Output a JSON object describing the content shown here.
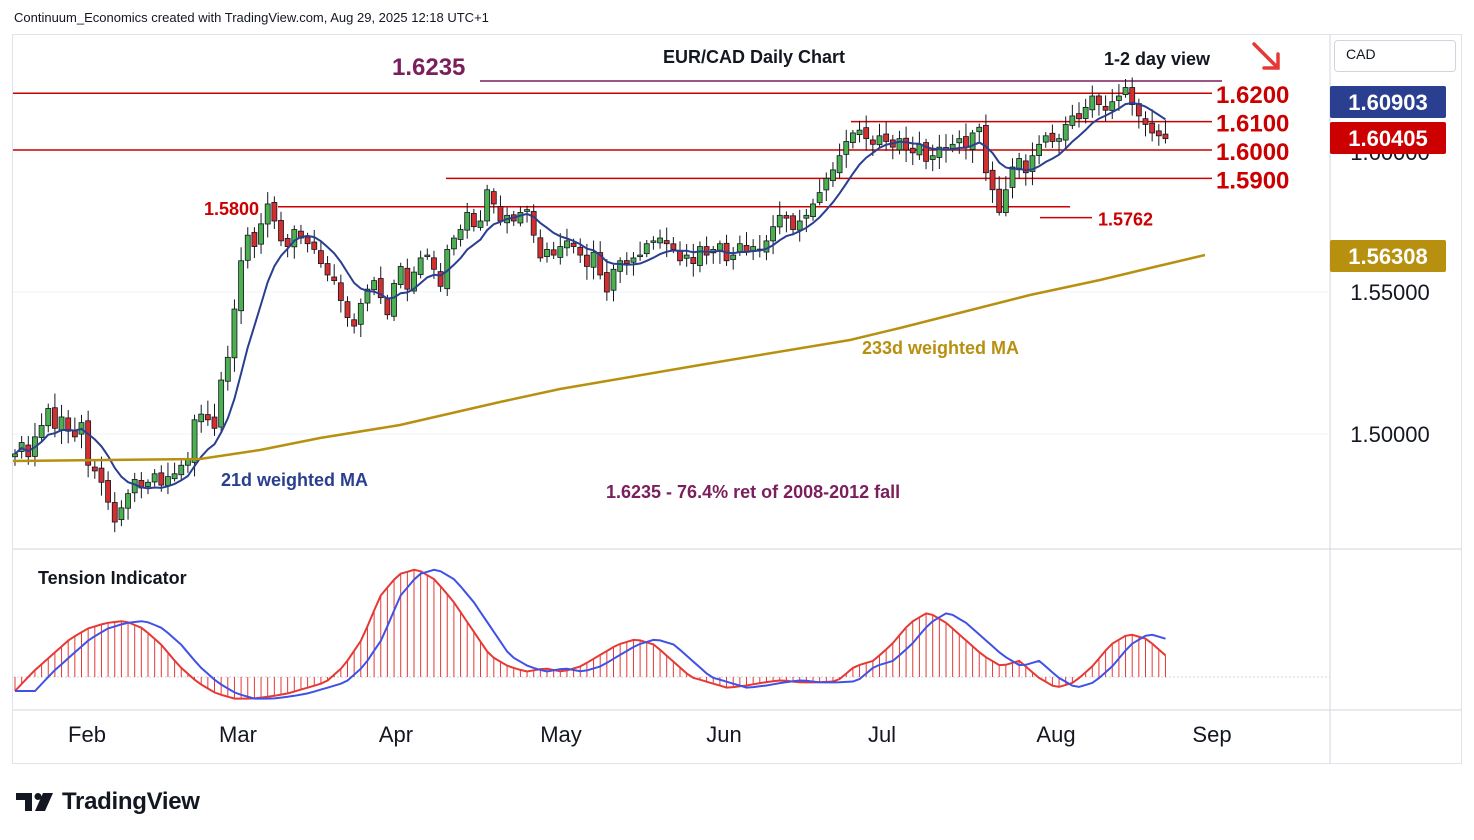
{
  "header": {
    "text": "Continuum_Economics created with TradingView.com, Aug 29, 2025 12:18 UTC+1"
  },
  "brand": {
    "name": "TradingView"
  },
  "price_scale": {
    "currency": "CAD",
    "axis_ticks": [
      "1.55000",
      "1.50000"
    ],
    "badges": [
      {
        "label": "1.60903",
        "value": 1.60903,
        "color": "#2a3f8f"
      },
      {
        "label": "1.60405",
        "value": 1.60405,
        "color": "#cc0000"
      },
      {
        "label": "1.56308",
        "value": 1.56308,
        "color": "#b8900f"
      }
    ],
    "partial_tick": "1.60000"
  },
  "annotations": {
    "title": "EUR/CAD Daily Chart",
    "view": "1-2 day view",
    "view_arrow": "arrow-down-right-icon",
    "fib_level": "1.6235",
    "fib_note": "1.6235 - 76.4% ret of 2008-2012 fall",
    "ma21_label": "21d weighted MA",
    "ma233_label": "233d weighted MA",
    "tension_label": "Tension Indicator"
  },
  "levels": [
    {
      "label": "1.6235",
      "value": 1.6235,
      "color": "#7a1f5c"
    },
    {
      "label": "1.6200",
      "value": 1.62,
      "color": "#cc0000"
    },
    {
      "label": "1.6100",
      "value": 1.61,
      "color": "#cc0000"
    },
    {
      "label": "1.6000",
      "value": 1.6,
      "color": "#cc0000"
    },
    {
      "label": "1.5900",
      "value": 1.59,
      "color": "#cc0000"
    },
    {
      "label": "1.5800",
      "value": 1.58,
      "color": "#cc0000"
    },
    {
      "label": "1.5762",
      "value": 1.5762,
      "color": "#cc0000"
    }
  ],
  "chart_data": {
    "type": "candlestick",
    "title": "EUR/CAD Daily Chart",
    "x_labels": [
      "Feb",
      "Mar",
      "Apr",
      "May",
      "Jun",
      "Jul",
      "Aug",
      "Sep"
    ],
    "ylim": [
      1.46,
      1.635
    ],
    "ohlc_start": [
      1.489,
      1.495,
      1.487,
      1.493
    ],
    "closes": [
      1.493,
      1.497,
      1.492,
      1.499,
      1.503,
      1.509,
      1.502,
      1.506,
      1.501,
      1.499,
      1.504,
      1.489,
      1.487,
      1.483,
      1.476,
      1.469,
      1.474,
      1.479,
      1.484,
      1.481,
      1.483,
      1.486,
      1.482,
      1.485,
      1.486,
      1.489,
      1.491,
      1.505,
      1.507,
      1.505,
      1.502,
      1.519,
      1.527,
      1.544,
      1.561,
      1.57,
      1.566,
      1.574,
      1.581,
      1.575,
      1.568,
      1.566,
      1.572,
      1.569,
      1.567,
      1.565,
      1.56,
      1.556,
      1.554,
      1.547,
      1.541,
      1.538,
      1.546,
      1.551,
      1.554,
      1.548,
      1.542,
      1.553,
      1.559,
      1.551,
      1.557,
      1.562,
      1.563,
      1.558,
      1.552,
      1.565,
      1.569,
      1.572,
      1.578,
      1.573,
      1.575,
      1.586,
      1.581,
      1.575,
      1.577,
      1.575,
      1.578,
      1.579,
      1.57,
      1.562,
      1.565,
      1.563,
      1.566,
      1.568,
      1.566,
      1.563,
      1.559,
      1.564,
      1.556,
      1.55,
      1.558,
      1.561,
      1.56,
      1.562,
      1.563,
      1.567,
      1.568,
      1.569,
      1.567,
      1.565,
      1.561,
      1.563,
      1.56,
      1.566,
      1.563,
      1.565,
      1.567,
      1.561,
      1.563,
      1.567,
      1.564,
      1.566,
      1.565,
      1.568,
      1.573,
      1.577,
      1.576,
      1.572,
      1.575,
      1.577,
      1.581,
      1.585,
      1.59,
      1.593,
      1.598,
      1.603,
      1.606,
      1.607,
      1.604,
      1.602,
      1.605,
      1.603,
      1.601,
      1.604,
      1.6,
      1.599,
      1.602,
      1.596,
      1.598,
      1.601,
      1.6,
      1.602,
      1.604,
      1.601,
      1.606,
      1.608,
      1.592,
      1.586,
      1.578,
      1.586,
      1.594,
      1.597,
      1.592,
      1.598,
      1.602,
      1.605,
      1.603,
      1.604,
      1.609,
      1.612,
      1.611,
      1.615,
      1.619,
      1.616,
      1.614,
      1.617,
      1.619,
      1.622,
      1.616,
      1.612,
      1.609,
      1.606,
      1.605,
      1.604
    ],
    "tension_indicator": {
      "ylim": [
        -1,
        1
      ],
      "columns_approx": [
        -0.13,
        0.05,
        0.2,
        0.35,
        0.45,
        0.5,
        0.52,
        0.45,
        0.3,
        0.1,
        -0.05,
        -0.15,
        -0.2,
        -0.2,
        -0.18,
        -0.15,
        -0.1,
        -0.05,
        0.1,
        0.35,
        0.75,
        0.95,
        1.0,
        0.9,
        0.7,
        0.45,
        0.2,
        0.1,
        0.05,
        0.08,
        0.05,
        0.1,
        0.2,
        0.3,
        0.35,
        0.3,
        0.15,
        0.0,
        -0.05,
        -0.1,
        -0.08,
        -0.05,
        -0.03,
        -0.05,
        -0.05,
        -0.04,
        0.1,
        0.15,
        0.3,
        0.5,
        0.6,
        0.5,
        0.35,
        0.2,
        0.1,
        0.15,
        0.0,
        -0.1,
        -0.05,
        0.1,
        0.3,
        0.4,
        0.35,
        0.2
      ]
    }
  }
}
